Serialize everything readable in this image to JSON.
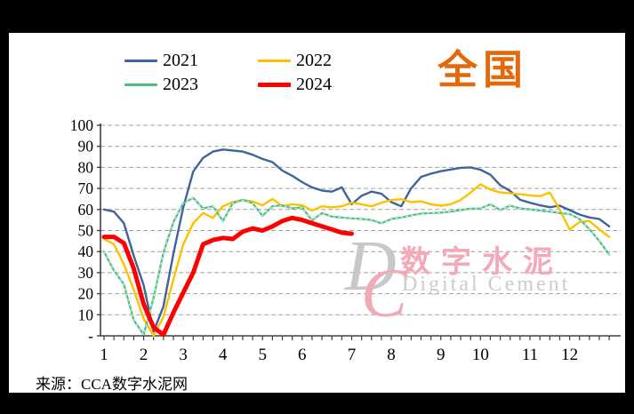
{
  "header": {
    "region_title": "全国"
  },
  "footer": {
    "source": "来源：CCA数字水泥网"
  },
  "watermark": {
    "monogram_d": "D",
    "monogram_c": "C",
    "cn_text": "数字水泥",
    "en_text": "Digital Cement",
    "cn_color": "#f3a9b8",
    "en_color": "#cccccc"
  },
  "chart_data": {
    "type": "line",
    "title": "全国",
    "xlabel": "",
    "ylabel": "",
    "grid": "horizontal-dashed",
    "legend_position": "top-center",
    "x_axis": {
      "unit": "week-of-year",
      "total_points": 52,
      "month_labels": [
        "1",
        "2",
        "3",
        "4",
        "5",
        "6",
        "7",
        "8",
        "9",
        "10",
        "11",
        "12"
      ],
      "month_label_indices": [
        0,
        4,
        8,
        12,
        16,
        20,
        25,
        29,
        34,
        38,
        43,
        47
      ]
    },
    "y_axis": {
      "min": 0,
      "max": 100,
      "tick_step": 10,
      "tick_labels": [
        "-",
        "10",
        "20",
        "30",
        "40",
        "50",
        "60",
        "70",
        "80",
        "90",
        "100"
      ]
    },
    "colors": {
      "gridline": "#a0a0a0",
      "axis": "#404040",
      "label_text": "#000000"
    },
    "series": [
      {
        "name": "2021",
        "color": "#3F639B",
        "width": 2.4,
        "values": [
          60,
          59,
          53.5,
          38,
          24,
          2,
          14,
          39,
          61,
          78,
          84.5,
          87.5,
          88.5,
          88,
          87.5,
          86,
          84,
          82.5,
          78.5,
          76,
          73,
          70.5,
          69,
          68.5,
          70.5,
          62.5,
          66.5,
          68.5,
          67.5,
          63.5,
          61.5,
          70,
          75.5,
          77,
          78.2,
          79,
          79.8,
          80,
          78.9,
          76.5,
          71.5,
          68.8,
          64.6,
          63.2,
          62,
          61.1,
          61.8,
          59.7,
          57.6,
          56.2,
          55.5,
          52
        ]
      },
      {
        "name": "2022",
        "color": "#FFC000",
        "width": 2.4,
        "values": [
          46,
          43.5,
          34,
          22,
          8,
          0,
          9,
          26.7,
          43.5,
          53.5,
          58.3,
          56,
          61.5,
          63.5,
          64.5,
          63.8,
          62,
          65,
          61.5,
          62.5,
          62,
          59.5,
          61.5,
          61,
          61.5,
          63.2,
          62.5,
          61.5,
          63.2,
          64.5,
          64.9,
          63.5,
          63.9,
          62.5,
          61.8,
          62.5,
          64.5,
          68,
          72,
          69.5,
          68.1,
          67.7,
          67.2,
          66.7,
          66.3,
          68,
          60,
          50.5,
          54,
          54.5,
          50.5,
          47
        ]
      },
      {
        "name": "2023",
        "color": "#4CBE82",
        "width": 2.2,
        "hatch": true,
        "values": [
          40,
          31,
          24.5,
          7.5,
          0.5,
          18,
          39.5,
          54,
          63,
          65.5,
          60.5,
          61.5,
          54.5,
          63,
          64.5,
          63,
          57,
          61.5,
          62,
          60.5,
          61,
          54.8,
          58.3,
          56.6,
          56.2,
          55.8,
          55.5,
          55,
          53.4,
          55.5,
          56.2,
          57.2,
          58,
          58.3,
          58.5,
          59,
          59.7,
          60.4,
          60.5,
          62.5,
          59.7,
          61.8,
          60.5,
          60.1,
          59.5,
          59,
          58.3,
          57.9,
          55.5,
          50.6,
          45,
          38.6
        ]
      },
      {
        "name": "2024",
        "color": "#FF0000",
        "width": 5,
        "values": [
          47,
          47,
          44,
          32,
          15,
          4,
          0.5,
          11,
          20.5,
          30,
          43.5,
          45.5,
          46.5,
          46,
          49.5,
          51,
          50,
          52,
          54.5,
          56,
          55,
          53.5,
          52,
          50.5,
          49,
          48.5
        ]
      }
    ]
  }
}
